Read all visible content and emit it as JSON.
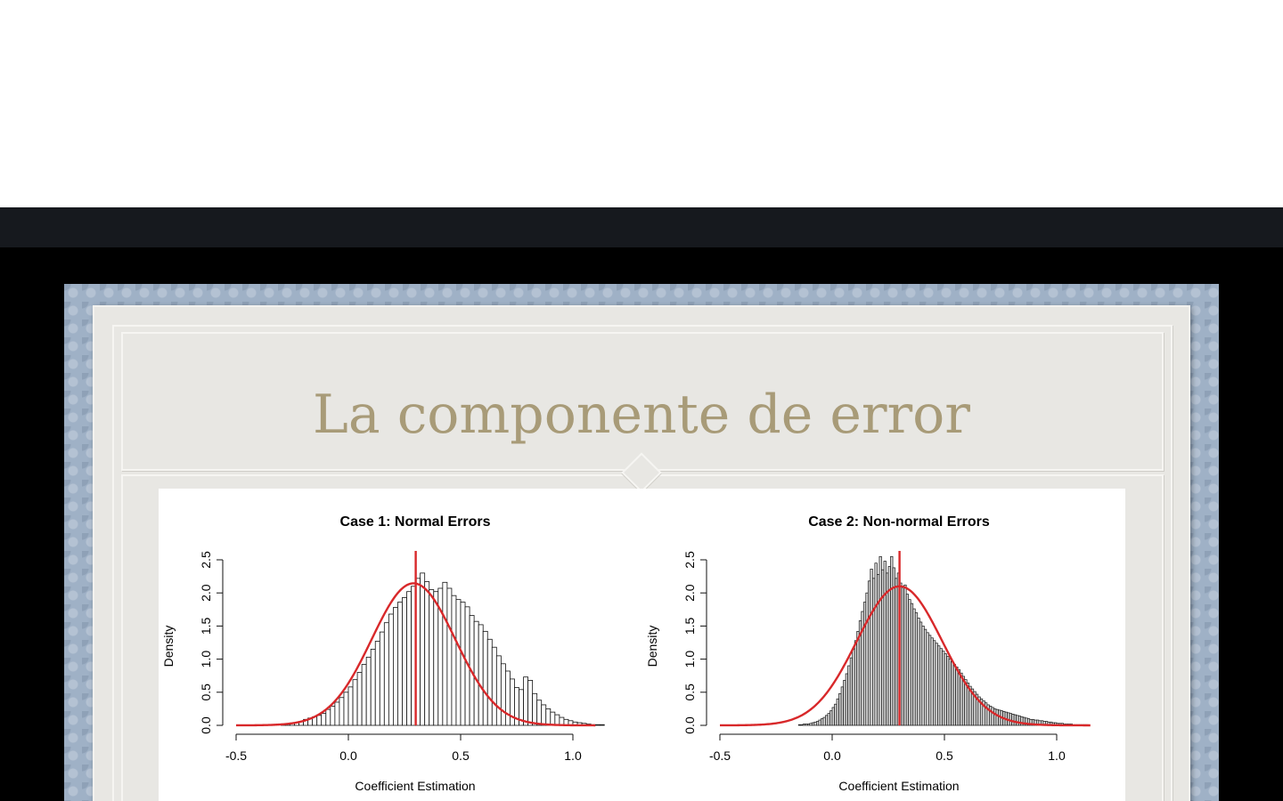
{
  "slide": {
    "title": "La componente de error"
  },
  "chart_data": [
    {
      "type": "histogram",
      "title": "Case 1: Normal Errors",
      "xlabel": "Coefficient Estimation",
      "ylabel": "Density",
      "xlim": [
        -0.5,
        1.1
      ],
      "ylim": [
        0,
        2.5
      ],
      "x_ticks": [
        "-0.5",
        "0.0",
        "0.5",
        "1.0"
      ],
      "y_ticks": [
        "0.0",
        "0.5",
        "1.0",
        "1.5",
        "2.0",
        "2.5"
      ],
      "bin_width": 0.02,
      "bin_start": -0.3,
      "densities": [
        0.01,
        0.02,
        0.03,
        0.04,
        0.06,
        0.09,
        0.11,
        0.13,
        0.15,
        0.18,
        0.24,
        0.29,
        0.35,
        0.42,
        0.5,
        0.58,
        0.69,
        0.8,
        0.92,
        1.03,
        1.15,
        1.27,
        1.41,
        1.55,
        1.68,
        1.78,
        1.86,
        1.93,
        2.02,
        2.1,
        2.22,
        2.3,
        2.17,
        2.05,
        2.02,
        2.07,
        2.16,
        2.07,
        1.96,
        1.9,
        1.86,
        1.79,
        1.66,
        1.57,
        1.52,
        1.42,
        1.3,
        1.18,
        1.05,
        0.93,
        0.82,
        0.7,
        0.57,
        0.54,
        0.73,
        0.68,
        0.48,
        0.38,
        0.31,
        0.25,
        0.2,
        0.16,
        0.12,
        0.09,
        0.07,
        0.05,
        0.04,
        0.03,
        0.02,
        0.01,
        0.01,
        0.01
      ],
      "normal_curve": {
        "mean": 0.29,
        "sd": 0.186,
        "color": "#d8282a"
      },
      "vline": {
        "x": 0.3,
        "color": "#d8282a"
      }
    },
    {
      "type": "histogram",
      "title": "Case 2: Non-normal Errors",
      "xlabel": "Coefficient Estimation",
      "ylabel": "Density",
      "xlim": [
        -0.5,
        1.15
      ],
      "ylim": [
        0,
        2.5
      ],
      "x_ticks": [
        "-0.5",
        "0.0",
        "0.5",
        "1.0"
      ],
      "y_ticks": [
        "0.0",
        "0.5",
        "1.0",
        "1.5",
        "2.0",
        "2.5"
      ],
      "bin_width": 0.01,
      "bin_start": -0.15,
      "densities": [
        0.01,
        0.01,
        0.02,
        0.02,
        0.02,
        0.03,
        0.04,
        0.05,
        0.06,
        0.08,
        0.1,
        0.12,
        0.15,
        0.18,
        0.22,
        0.27,
        0.32,
        0.4,
        0.48,
        0.58,
        0.68,
        0.78,
        0.9,
        1.02,
        1.15,
        1.28,
        1.42,
        1.58,
        1.72,
        1.86,
        2.0,
        2.18,
        2.36,
        2.22,
        2.45,
        2.28,
        2.55,
        2.35,
        2.48,
        2.3,
        2.4,
        2.55,
        2.38,
        2.22,
        2.3,
        2.15,
        2.08,
        2.12,
        1.98,
        1.9,
        1.84,
        1.76,
        1.7,
        1.62,
        1.56,
        1.5,
        1.45,
        1.4,
        1.36,
        1.32,
        1.28,
        1.24,
        1.2,
        1.16,
        1.12,
        1.08,
        1.04,
        1.0,
        0.96,
        0.92,
        0.88,
        0.84,
        0.79,
        0.74,
        0.69,
        0.64,
        0.59,
        0.55,
        0.51,
        0.47,
        0.43,
        0.4,
        0.37,
        0.34,
        0.31,
        0.29,
        0.27,
        0.25,
        0.24,
        0.23,
        0.22,
        0.21,
        0.2,
        0.19,
        0.18,
        0.17,
        0.16,
        0.15,
        0.14,
        0.13,
        0.12,
        0.11,
        0.1,
        0.09,
        0.09,
        0.08,
        0.08,
        0.07,
        0.07,
        0.06,
        0.06,
        0.05,
        0.05,
        0.04,
        0.04,
        0.03,
        0.03,
        0.03,
        0.02,
        0.02,
        0.02,
        0.02,
        0.01,
        0.01,
        0.01,
        0.01,
        0.01,
        0.01,
        0.01
      ],
      "normal_curve": {
        "mean": 0.3,
        "sd": 0.19,
        "color": "#d8282a"
      },
      "vline": {
        "x": 0.3,
        "color": "#d8282a"
      }
    }
  ]
}
